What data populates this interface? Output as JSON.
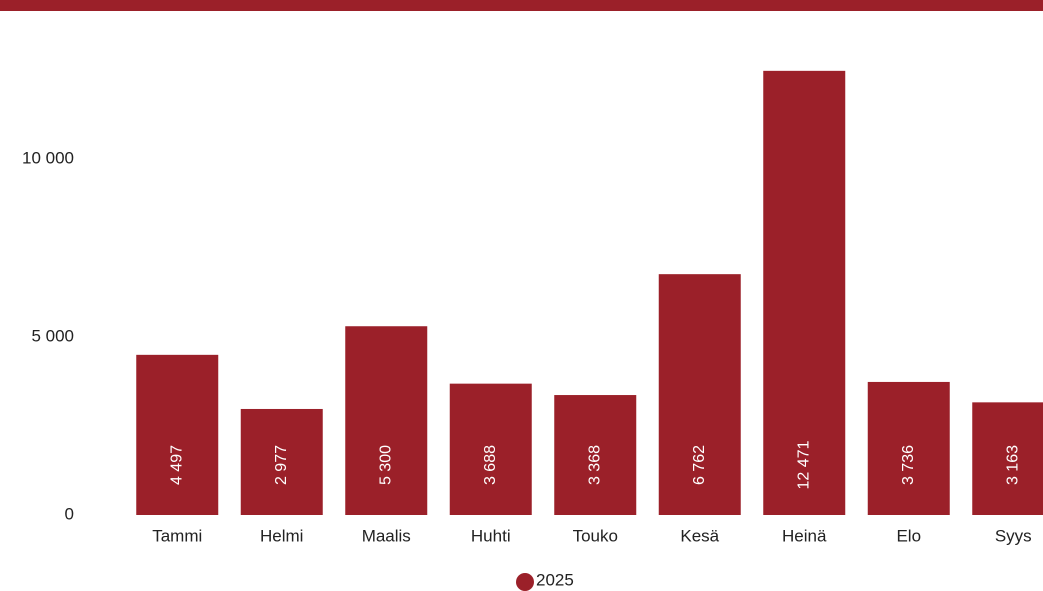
{
  "chart_data": {
    "type": "bar",
    "categories": [
      "Tammi",
      "Helmi",
      "Maalis",
      "Huhti",
      "Touko",
      "Kesä",
      "Heinä",
      "Elo",
      "Syys"
    ],
    "series": [
      {
        "name": "2025",
        "color": "#9b2029",
        "values": [
          4497,
          2977,
          5300,
          3688,
          3368,
          6762,
          12471,
          3736,
          3163
        ],
        "value_labels": [
          "4 497",
          "2 977",
          "5 300",
          "3 688",
          "3 368",
          "6 762",
          "12 471",
          "3 736",
          "3 163"
        ]
      }
    ],
    "ylim": [
      0,
      13000
    ],
    "yticks": [
      0,
      {
        "value": 5000,
        "label": "5 000"
      },
      {
        "value": 10000,
        "label": "10 000"
      }
    ],
    "grid": false,
    "legend": "bottom"
  }
}
